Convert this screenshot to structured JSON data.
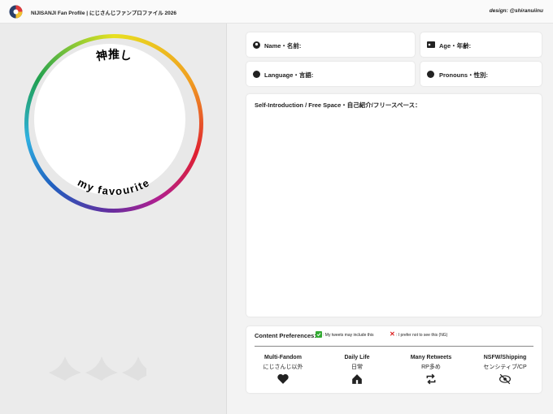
{
  "header": {
    "title": "NIJISANJI Fan Profile | にじさんじファンプロファイル 2026",
    "credit": "design: @shiranuiinu"
  },
  "oshi": {
    "top": "神推し",
    "bottom": "my favourite"
  },
  "fields": [
    "Name・名前:",
    "Age・年齢:",
    "Language・言語:",
    "Pronouns・性別:"
  ],
  "intro": {
    "title": "Self-Introduction / Free Space・自己紹介/フリースペース："
  },
  "preferences": {
    "title": "Content Preferences:",
    "yes": ": My tweets may include this",
    "no": ": I prefer not to see this (NG)",
    "items": [
      {
        "en": "Multi-Fandom",
        "jp": "にじさんじ以外"
      },
      {
        "en": "Daily Life",
        "jp": "日常"
      },
      {
        "en": "Many Retweets",
        "jp": "RP多め"
      },
      {
        "en": "NSFW/Shipping",
        "jp": "センシティブ/CP"
      }
    ]
  }
}
